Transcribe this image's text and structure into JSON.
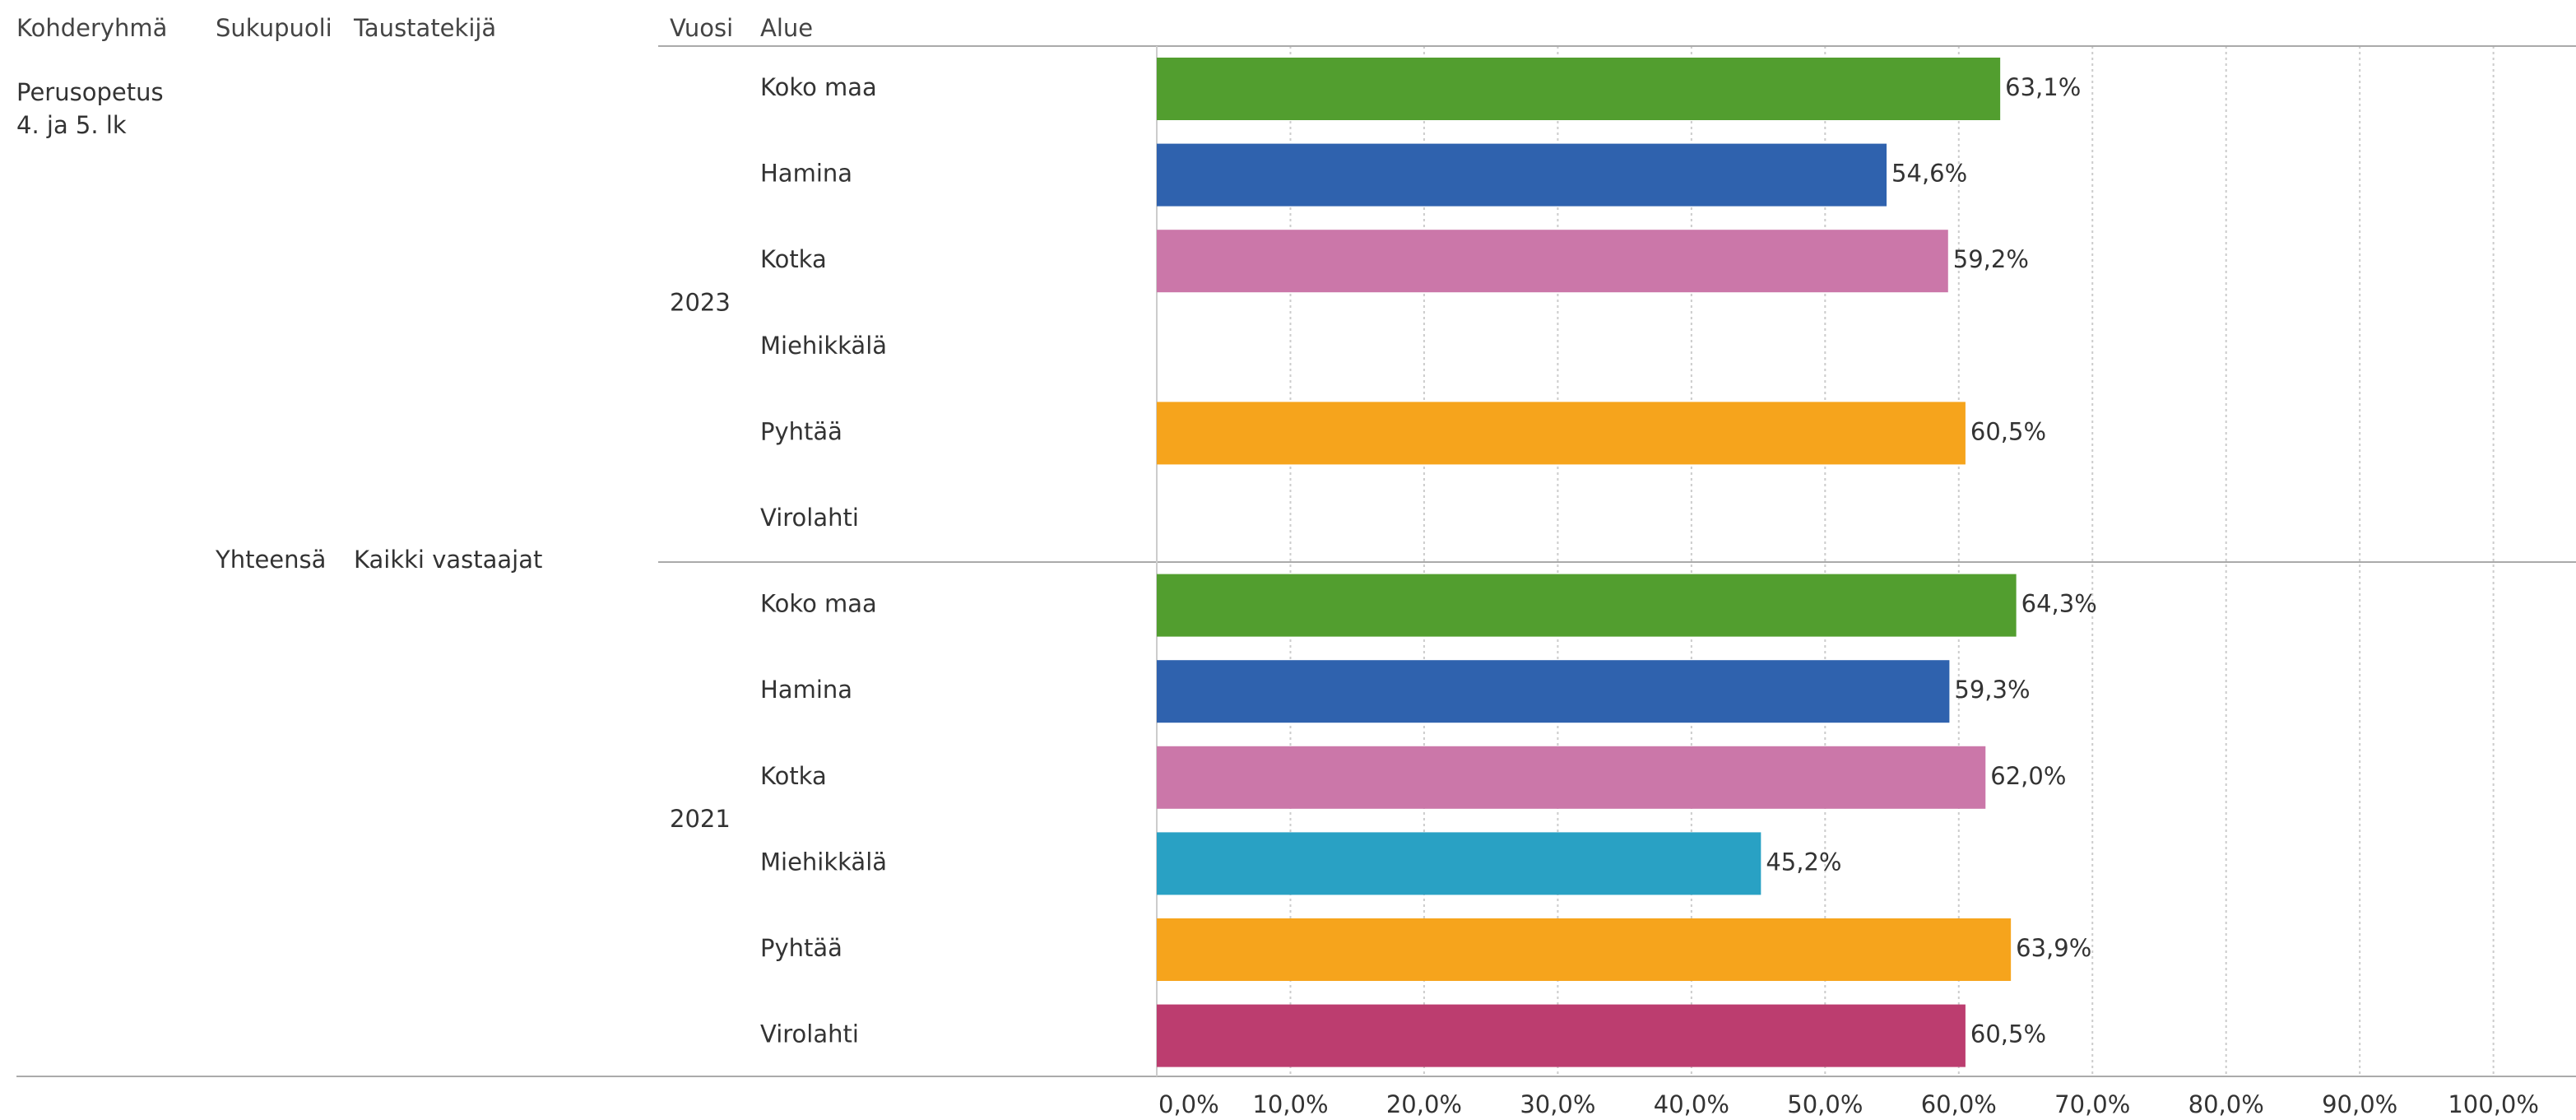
{
  "chart_data": {
    "type": "bar",
    "orientation": "horizontal",
    "row_headers": [
      "Kohderyhmä",
      "Sukupuoli",
      "Taustatekijä",
      "Vuosi",
      "Alue"
    ],
    "kohderyhma": "Perusopetus 4. ja 5. lk",
    "sukupuoli": "Yhteensä",
    "taustatekija": "Kaikki vastaajat",
    "years": [
      "2023",
      "2021"
    ],
    "categories": [
      "Koko maa",
      "Hamina",
      "Kotka",
      "Miehikkälä",
      "Pyhtää",
      "Virolahti",
      "Koko maa",
      "Hamina",
      "Kotka",
      "Miehikkälä",
      "Pyhtää",
      "Virolahti"
    ],
    "values": [
      63.1,
      54.6,
      59.2,
      null,
      60.5,
      null,
      64.3,
      59.3,
      62.0,
      45.2,
      63.9,
      60.5
    ],
    "value_labels": [
      "63,1%",
      "54,6%",
      "59,2%",
      null,
      "60,5%",
      null,
      "64,3%",
      "59,3%",
      "62,0%",
      "45,2%",
      "63,9%",
      "60,5%"
    ],
    "colors": [
      "#529e2f",
      "#2f62ae",
      "#cb77a9",
      "#29a1c4",
      "#f6a41c",
      "#bc3d6f",
      "#529e2f",
      "#2f62ae",
      "#cb77a9",
      "#29a1c4",
      "#f6a41c",
      "#bc3d6f"
    ],
    "xlim": [
      0,
      105.5
    ],
    "xticks": [
      {
        "value": 0,
        "label": "0,0%"
      },
      {
        "value": 10,
        "label": "10,0%"
      },
      {
        "value": 20,
        "label": "20,0%"
      },
      {
        "value": 30,
        "label": "30,0%"
      },
      {
        "value": 40,
        "label": "40,0%"
      },
      {
        "value": 50,
        "label": "50,0%"
      },
      {
        "value": 60,
        "label": "60,0%"
      },
      {
        "value": 70,
        "label": "70,0%"
      },
      {
        "value": 80,
        "label": "80,0%"
      },
      {
        "value": 90,
        "label": "90,0%"
      },
      {
        "value": 100,
        "label": "100,0%"
      }
    ],
    "grid": true
  }
}
